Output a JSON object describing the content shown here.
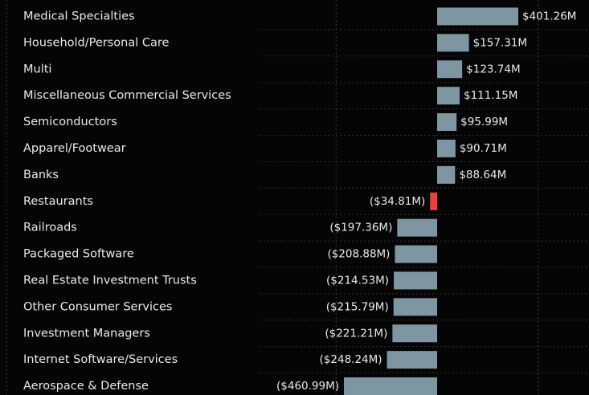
{
  "chart_data": {
    "type": "bar",
    "orientation": "horizontal",
    "categories": [
      "Medical Specialties",
      "Household/Personal Care",
      "Multi",
      "Miscellaneous Commercial Services",
      "Semiconductors",
      "Apparel/Footwear",
      "Banks",
      "Restaurants",
      "Railroads",
      "Packaged Software",
      "Real Estate Investment Trusts",
      "Other Consumer Services",
      "Investment Managers",
      "Internet Software/Services",
      "Aerospace & Defense"
    ],
    "values": [
      401.26,
      157.31,
      123.74,
      111.15,
      95.99,
      90.71,
      88.64,
      -34.81,
      -197.36,
      -208.88,
      -214.53,
      -215.79,
      -221.21,
      -248.24,
      -460.99
    ],
    "value_labels": [
      "$401.26M",
      "$157.31M",
      "$123.74M",
      "$111.15M",
      "$95.99M",
      "$90.71M",
      "$88.64M",
      "($34.81M)",
      "($197.36M)",
      "($208.88M)",
      "($214.53M)",
      "($215.79M)",
      "($221.21M)",
      "($248.24M)",
      "($460.99M)"
    ],
    "colors": [
      "#7e95a2",
      "#7e95a2",
      "#7e95a2",
      "#7e95a2",
      "#7e95a2",
      "#7e95a2",
      "#7e95a2",
      "#e8433a",
      "#7e95a2",
      "#7e95a2",
      "#7e95a2",
      "#7e95a2",
      "#7e95a2",
      "#7e95a2",
      "#7e95a2"
    ],
    "xlim": [
      -2162,
      751
    ],
    "xticks": [
      -500,
      500
    ],
    "grid": true
  }
}
